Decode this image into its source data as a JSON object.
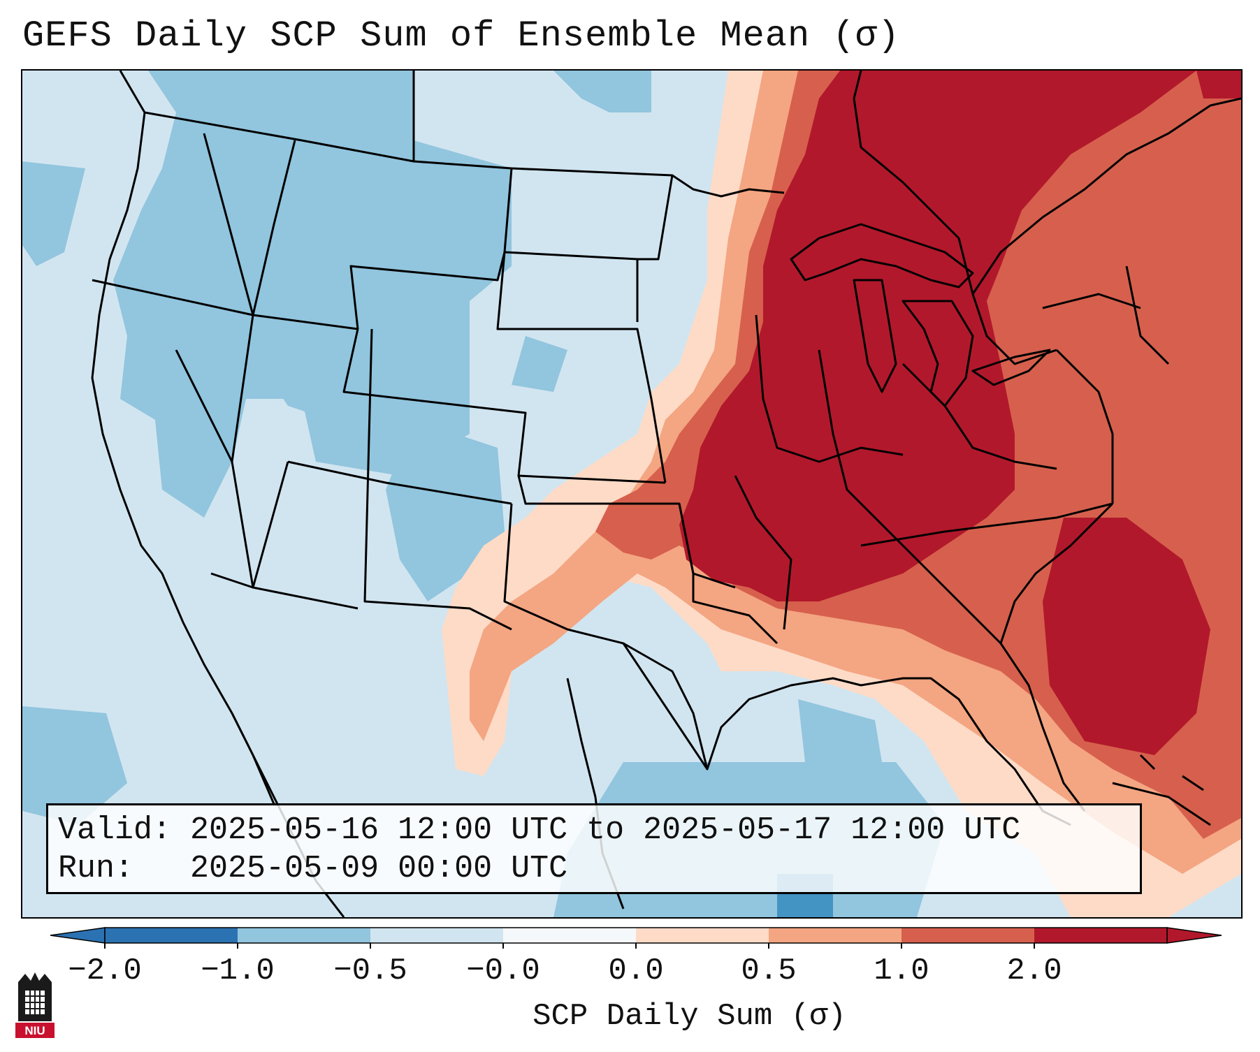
{
  "title": "GEFS Daily SCP Sum of Ensemble Mean (σ)",
  "info": {
    "valid_label": "Valid:",
    "valid_value": "2025-05-16 12:00 UTC to 2025-05-17 12:00 UTC",
    "run_label": "Run:",
    "run_value": "2025-05-09 00:00 UTC"
  },
  "colorbar": {
    "label": "SCP Daily Sum (σ)",
    "ticks": [
      "−2.0",
      "−1.0",
      "−0.5",
      "−0.0",
      "0.0",
      "0.5",
      "1.0",
      "2.0"
    ],
    "colors": [
      "#2b72b2",
      "#92c5de",
      "#d1e5f0",
      "#f5f8fa",
      "#fddbc7",
      "#f4a582",
      "#d6604d",
      "#b2182b"
    ],
    "extend": "both"
  },
  "map": {
    "region": "Contiguous United States",
    "background_color": "#d1e5f0",
    "strong_positive_color": "#b2182b"
  },
  "logo": {
    "text": "NIU",
    "color": "#c8102e"
  }
}
